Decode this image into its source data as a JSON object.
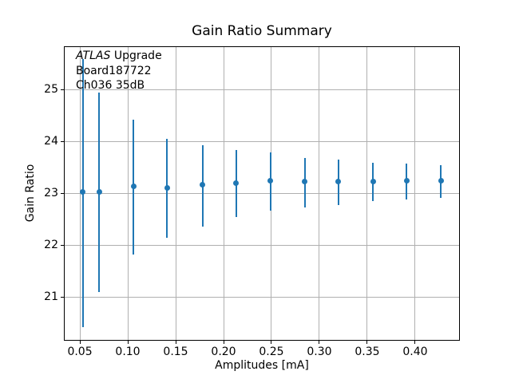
{
  "chart_data": {
    "type": "scatter",
    "title": "Gain Ratio Summary",
    "xlabel": "Amplitudes [mA]",
    "ylabel": "Gain Ratio",
    "annotation": {
      "line1_italic": "ATLAS",
      "line1_rest": " Upgrade",
      "line2": "Board187722",
      "line3": "Ch036 35dB"
    },
    "xlim": [
      0.0333,
      0.4467
    ],
    "ylim": [
      20.17,
      25.84
    ],
    "grid": true,
    "legend": "none",
    "xtick_values": [
      0.05,
      0.1,
      0.15,
      0.2,
      0.25,
      0.3,
      0.35,
      0.4
    ],
    "xtick_labels": [
      "0.05",
      "0.10",
      "0.15",
      "0.20",
      "0.25",
      "0.30",
      "0.35",
      "0.40"
    ],
    "ytick_values": [
      21,
      22,
      23,
      24,
      25
    ],
    "ytick_labels": [
      "21",
      "22",
      "23",
      "24",
      "25"
    ],
    "series": [
      {
        "name": "gain-ratio-errorbars",
        "color": "#1f77b4",
        "marker": "dot",
        "capsize": 0,
        "x": [
          0.053,
          0.07,
          0.106,
          0.141,
          0.178,
          0.213,
          0.249,
          0.285,
          0.32,
          0.356,
          0.391,
          0.427
        ],
        "y": [
          23.03,
          23.04,
          23.14,
          23.12,
          23.17,
          23.21,
          23.25,
          23.23,
          23.23,
          23.24,
          23.25,
          23.25
        ],
        "yerr": [
          2.58,
          1.92,
          1.3,
          0.96,
          0.78,
          0.65,
          0.56,
          0.48,
          0.44,
          0.37,
          0.34,
          0.32
        ]
      }
    ]
  },
  "colors": {
    "accent": "#1f77b4",
    "grid": "#b0b0b0",
    "spine": "#000000",
    "background": "#ffffff",
    "text": "#000000"
  }
}
